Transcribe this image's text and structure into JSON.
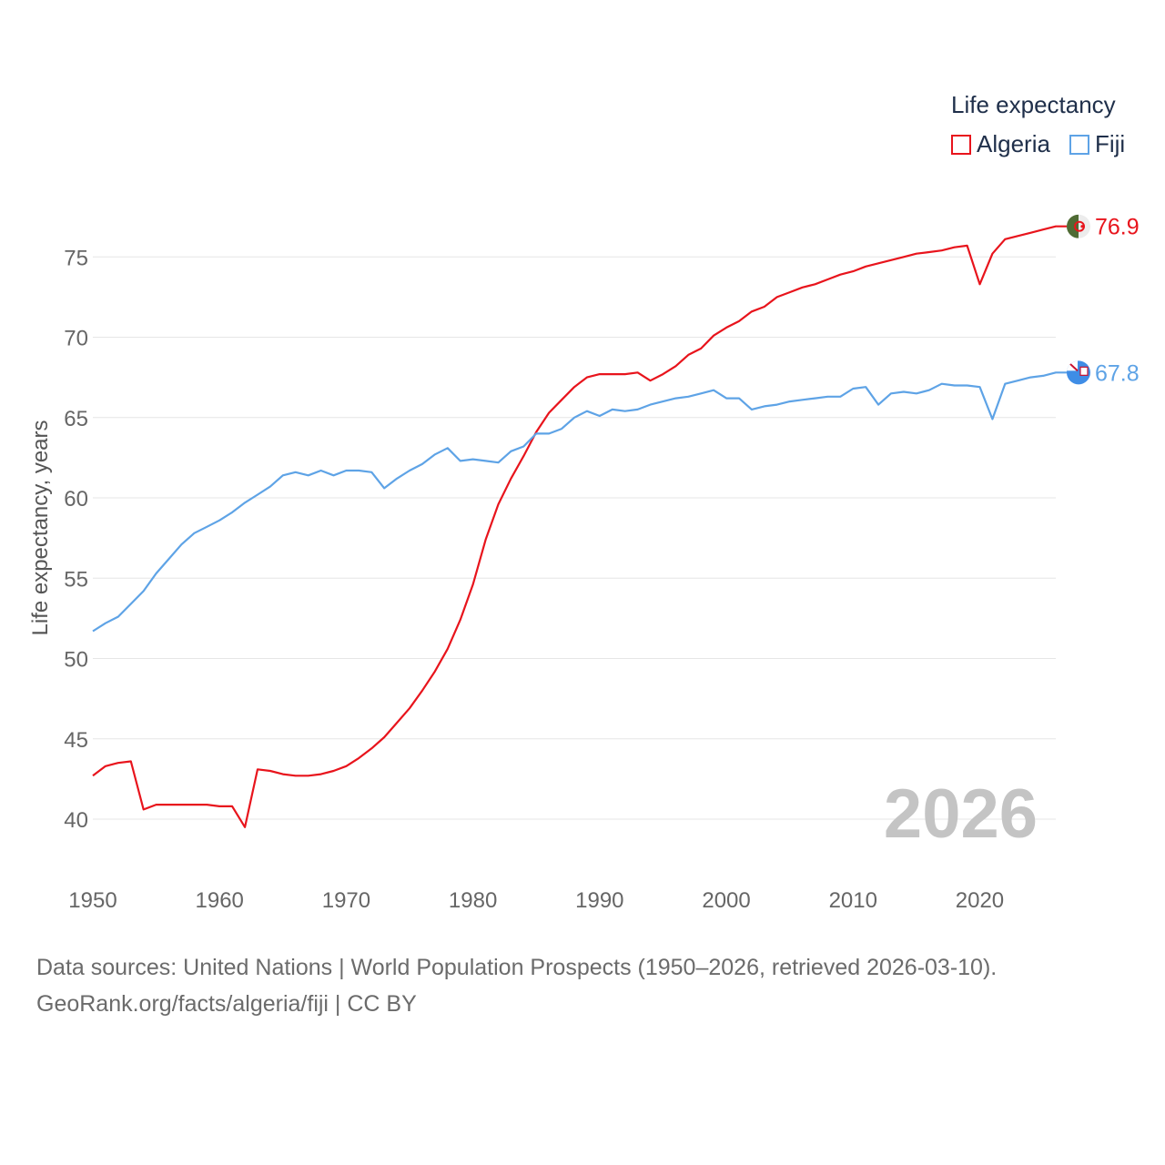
{
  "chart_data": {
    "type": "line",
    "title": "Life expectancy",
    "ylabel": "Life expectancy, years",
    "xlabel": "",
    "xlim": [
      1950,
      2026
    ],
    "ylim": [
      37.5,
      78.5
    ],
    "xticks": [
      1950,
      1960,
      1970,
      1980,
      1990,
      2000,
      2010,
      2020
    ],
    "yticks": [
      40,
      45,
      50,
      55,
      60,
      65,
      70,
      75
    ],
    "grid": true,
    "year_label": "2026",
    "legend_position": "top-right",
    "series": [
      {
        "name": "Algeria",
        "color": "#e8141c",
        "end_label": "76.9",
        "x": [
          1950,
          1951,
          1952,
          1953,
          1954,
          1955,
          1956,
          1957,
          1958,
          1959,
          1960,
          1961,
          1962,
          1963,
          1964,
          1965,
          1966,
          1967,
          1968,
          1969,
          1970,
          1971,
          1972,
          1973,
          1974,
          1975,
          1976,
          1977,
          1978,
          1979,
          1980,
          1981,
          1982,
          1983,
          1984,
          1985,
          1986,
          1987,
          1988,
          1989,
          1990,
          1991,
          1992,
          1993,
          1994,
          1995,
          1996,
          1997,
          1998,
          1999,
          2000,
          2001,
          2002,
          2003,
          2004,
          2005,
          2006,
          2007,
          2008,
          2009,
          2010,
          2011,
          2012,
          2013,
          2014,
          2015,
          2016,
          2017,
          2018,
          2019,
          2020,
          2021,
          2022,
          2023,
          2024,
          2025,
          2026
        ],
        "values": [
          42.7,
          43.3,
          43.5,
          43.6,
          40.6,
          40.9,
          40.9,
          40.9,
          40.9,
          40.9,
          40.8,
          40.8,
          39.5,
          43.1,
          43.0,
          42.8,
          42.7,
          42.7,
          42.8,
          43.0,
          43.3,
          43.8,
          44.4,
          45.1,
          46.0,
          46.9,
          48.0,
          49.2,
          50.6,
          52.4,
          54.6,
          57.4,
          59.6,
          61.2,
          62.6,
          64.1,
          65.3,
          66.1,
          66.9,
          67.5,
          67.7,
          67.7,
          67.7,
          67.8,
          67.3,
          67.7,
          68.2,
          68.9,
          69.3,
          70.1,
          70.6,
          71.0,
          71.6,
          71.9,
          72.5,
          72.8,
          73.1,
          73.3,
          73.6,
          73.9,
          74.1,
          74.4,
          74.6,
          74.8,
          75.0,
          75.2,
          75.3,
          75.4,
          75.6,
          75.7,
          73.3,
          75.2,
          76.1,
          76.3,
          76.5,
          76.7,
          76.9
        ]
      },
      {
        "name": "Fiji",
        "color": "#5ea3e6",
        "end_label": "67.8",
        "x": [
          1950,
          1951,
          1952,
          1953,
          1954,
          1955,
          1956,
          1957,
          1958,
          1959,
          1960,
          1961,
          1962,
          1963,
          1964,
          1965,
          1966,
          1967,
          1968,
          1969,
          1970,
          1971,
          1972,
          1973,
          1974,
          1975,
          1976,
          1977,
          1978,
          1979,
          1980,
          1981,
          1982,
          1983,
          1984,
          1985,
          1986,
          1987,
          1988,
          1989,
          1990,
          1991,
          1992,
          1993,
          1994,
          1995,
          1996,
          1997,
          1998,
          1999,
          2000,
          2001,
          2002,
          2003,
          2004,
          2005,
          2006,
          2007,
          2008,
          2009,
          2010,
          2011,
          2012,
          2013,
          2014,
          2015,
          2016,
          2017,
          2018,
          2019,
          2020,
          2021,
          2022,
          2023,
          2024,
          2025,
          2026
        ],
        "values": [
          51.7,
          52.2,
          52.6,
          53.4,
          54.2,
          55.3,
          56.2,
          57.1,
          57.8,
          58.2,
          58.6,
          59.1,
          59.7,
          60.2,
          60.7,
          61.4,
          61.6,
          61.4,
          61.7,
          61.4,
          61.7,
          61.7,
          61.6,
          60.6,
          61.2,
          61.7,
          62.1,
          62.7,
          63.1,
          62.3,
          62.4,
          62.3,
          62.2,
          62.9,
          63.2,
          64.0,
          64.0,
          64.3,
          65.0,
          65.4,
          65.1,
          65.5,
          65.4,
          65.5,
          65.8,
          66.0,
          66.2,
          66.3,
          66.5,
          66.7,
          66.2,
          66.2,
          65.5,
          65.7,
          65.8,
          66.0,
          66.1,
          66.2,
          66.3,
          66.3,
          66.8,
          66.9,
          65.8,
          66.5,
          66.6,
          66.5,
          66.7,
          67.1,
          67.0,
          67.0,
          66.9,
          64.9,
          67.1,
          67.3,
          67.5,
          67.6,
          67.8
        ]
      }
    ],
    "source_text": "Data sources: United Nations | World Population Prospects (1950–2026, retrieved 2026-03-10).",
    "attribution_text": "GeoRank.org/facts/algeria/fiji | CC BY"
  },
  "flags": {
    "algeria": {
      "icon": "algeria-flag-icon",
      "green": "#4f6b34",
      "white": "#ececec",
      "red": "#e8141c"
    },
    "fiji": {
      "icon": "fiji-flag-icon",
      "blue": "#3f8de6",
      "red": "#c8102e"
    }
  }
}
